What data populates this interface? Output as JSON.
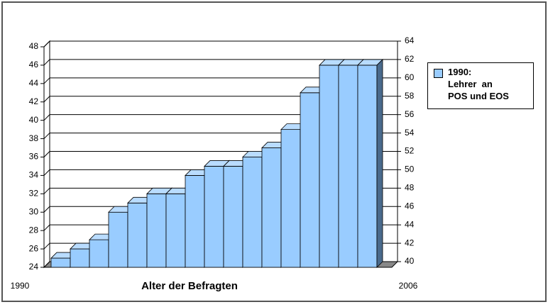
{
  "chart_data": {
    "type": "bar3d",
    "x_label": "Alter der Befragten",
    "categories": [
      "1990",
      null,
      null,
      null,
      null,
      null,
      null,
      null,
      null,
      null,
      null,
      null,
      null,
      null,
      null,
      null,
      "2006"
    ],
    "series": [
      {
        "name": "1990:\nLehrer  an\nPOS und EOS",
        "color": "#99ccff",
        "values": [
          25,
          26,
          27,
          30,
          31,
          32,
          32,
          34,
          35,
          35,
          36,
          37,
          39,
          43,
          46,
          46,
          46
        ]
      }
    ],
    "ylim": [
      24,
      48
    ],
    "yticks": [
      24,
      26,
      28,
      30,
      32,
      34,
      36,
      38,
      40,
      42,
      44,
      46,
      48
    ],
    "y2lim": [
      40,
      64
    ],
    "y2ticks": [
      40,
      42,
      44,
      46,
      48,
      50,
      52,
      54,
      56,
      58,
      60,
      62,
      64
    ],
    "grid": true
  }
}
